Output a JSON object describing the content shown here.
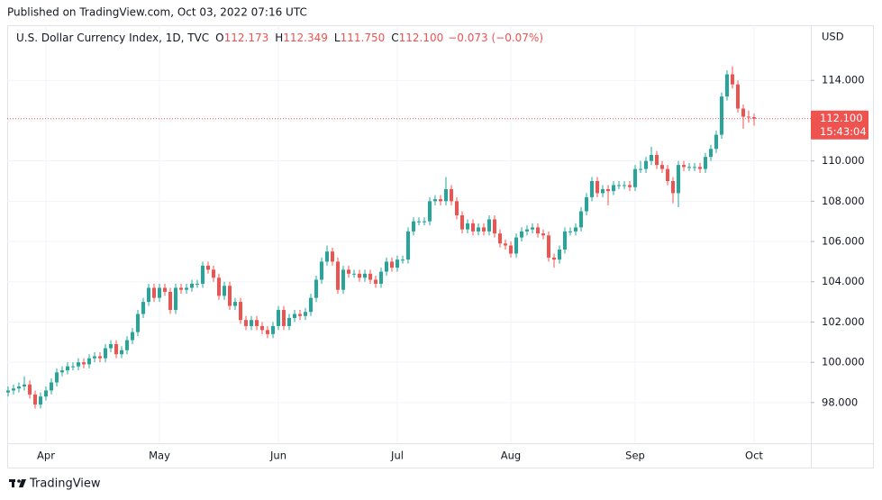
{
  "chart_data": {
    "type": "candlestick",
    "published": "Published on TradingView.com, Oct 03, 2022 07:16 UTC",
    "title": "U.S. Dollar Currency Index, 1D, TVC",
    "legend": [
      {
        "key": "O",
        "value": "112.173"
      },
      {
        "key": "H",
        "value": "112.349"
      },
      {
        "key": "L",
        "value": "111.750"
      },
      {
        "key": "C",
        "value": "112.100"
      }
    ],
    "change": "−0.073 (−0.07%)",
    "currency": "USD",
    "brand": "TradingView",
    "last_price": {
      "value": 112.1,
      "label": "112.100"
    },
    "countdown": "15:43:04",
    "up_color": "#26a69a",
    "down_color": "#ef5350",
    "grid": true,
    "categories": [
      null,
      null,
      null,
      null,
      null,
      null,
      null,
      "Apr",
      null,
      null,
      null,
      null,
      null,
      null,
      null,
      null,
      null,
      null,
      null,
      null,
      null,
      null,
      null,
      null,
      null,
      null,
      null,
      null,
      "May",
      null,
      null,
      null,
      null,
      null,
      null,
      null,
      null,
      null,
      null,
      null,
      null,
      null,
      null,
      null,
      null,
      null,
      null,
      null,
      null,
      null,
      "Jun",
      null,
      null,
      null,
      null,
      null,
      null,
      null,
      null,
      null,
      null,
      null,
      null,
      null,
      null,
      null,
      null,
      null,
      null,
      null,
      null,
      null,
      "Jul",
      null,
      null,
      null,
      null,
      null,
      null,
      null,
      null,
      null,
      null,
      null,
      null,
      null,
      null,
      null,
      null,
      null,
      null,
      null,
      null,
      "Aug",
      null,
      null,
      null,
      null,
      null,
      null,
      null,
      null,
      null,
      null,
      null,
      null,
      null,
      null,
      null,
      null,
      null,
      null,
      null,
      null,
      null,
      null,
      "Sep",
      null,
      null,
      null,
      null,
      null,
      null,
      null,
      null,
      null,
      null,
      null,
      null,
      null,
      null,
      null,
      null,
      null,
      null,
      null,
      null,
      null,
      "Oct"
    ],
    "open": [
      98.5,
      98.6,
      98.7,
      98.8,
      98.9,
      98.4,
      97.9,
      98.3,
      98.6,
      99.0,
      99.5,
      99.6,
      99.8,
      99.8,
      100.0,
      99.9,
      100.2,
      100.3,
      100.2,
      100.7,
      100.9,
      100.4,
      100.6,
      101.1,
      101.5,
      102.4,
      103.0,
      103.7,
      103.2,
      103.7,
      103.5,
      102.6,
      103.7,
      103.6,
      103.7,
      103.9,
      103.9,
      104.8,
      104.6,
      104.2,
      103.3,
      103.8,
      102.8,
      103.0,
      102.1,
      101.8,
      102.1,
      101.8,
      101.6,
      101.4,
      101.8,
      102.6,
      101.8,
      102.2,
      102.4,
      102.3,
      102.5,
      103.2,
      104.1,
      105.0,
      105.5,
      105.0,
      103.6,
      104.6,
      104.4,
      104.4,
      104.2,
      104.4,
      104.1,
      103.9,
      104.5,
      105.0,
      104.7,
      105.1,
      105.1,
      106.5,
      107.0,
      107.0,
      107.0,
      108.0,
      108.1,
      108.0,
      108.6,
      108.0,
      107.3,
      106.6,
      106.9,
      106.5,
      106.7,
      106.5,
      107.1,
      106.4,
      105.9,
      105.8,
      105.4,
      106.2,
      106.5,
      106.6,
      106.7,
      106.4,
      106.3,
      105.2,
      105.1,
      105.6,
      106.5,
      106.5,
      106.7,
      107.5,
      108.2,
      109.0,
      108.4,
      108.6,
      108.5,
      108.8,
      108.8,
      108.8,
      108.7,
      109.6,
      109.6,
      110.0,
      110.3,
      109.8,
      109.6,
      109.0,
      108.4,
      109.8,
      109.7,
      109.7,
      109.7,
      109.6,
      110.2,
      110.6,
      111.3,
      113.2,
      114.3,
      113.8,
      112.6,
      112.2,
      112.173
    ],
    "high": [
      98.8,
      98.9,
      99.0,
      99.3,
      99.1,
      98.6,
      98.5,
      98.8,
      99.2,
      99.7,
      99.8,
      100.0,
      100.0,
      100.2,
      100.2,
      100.4,
      100.5,
      100.5,
      100.9,
      101.1,
      101.1,
      100.8,
      101.3,
      101.7,
      102.6,
      103.2,
      103.9,
      103.9,
      103.9,
      103.9,
      103.7,
      103.9,
      103.9,
      103.9,
      104.1,
      104.1,
      105.0,
      105.0,
      104.8,
      104.4,
      104.0,
      104.0,
      103.2,
      103.2,
      102.3,
      102.3,
      102.3,
      102.0,
      101.8,
      102.0,
      102.8,
      102.8,
      102.4,
      102.6,
      102.6,
      102.7,
      103.4,
      104.3,
      105.2,
      105.8,
      105.7,
      105.2,
      104.8,
      104.8,
      104.6,
      104.6,
      104.6,
      104.6,
      104.3,
      104.7,
      105.2,
      105.2,
      105.3,
      105.3,
      106.7,
      107.2,
      107.2,
      107.2,
      108.2,
      108.3,
      108.3,
      109.2,
      108.8,
      108.2,
      107.5,
      107.1,
      107.1,
      106.9,
      106.9,
      107.3,
      107.3,
      106.6,
      106.1,
      106.0,
      106.4,
      106.7,
      106.8,
      106.9,
      106.9,
      106.6,
      106.5,
      105.4,
      105.8,
      106.7,
      106.7,
      106.9,
      107.7,
      108.4,
      109.2,
      109.2,
      108.8,
      108.8,
      109.0,
      109.0,
      109.0,
      109.0,
      109.8,
      110.0,
      110.2,
      110.7,
      110.5,
      110.0,
      109.8,
      109.2,
      110.0,
      110.0,
      109.9,
      109.9,
      109.9,
      110.4,
      110.8,
      111.5,
      113.4,
      114.5,
      114.7,
      114.0,
      112.8,
      112.5,
      112.349
    ],
    "low": [
      98.3,
      98.4,
      98.5,
      98.6,
      98.2,
      97.7,
      97.7,
      98.1,
      98.4,
      98.8,
      99.3,
      99.4,
      99.6,
      99.6,
      99.7,
      99.7,
      100.0,
      100.0,
      100.0,
      100.5,
      100.2,
      100.2,
      100.4,
      100.9,
      101.3,
      102.2,
      102.8,
      103.0,
      103.0,
      103.3,
      102.4,
      102.4,
      103.4,
      103.4,
      103.5,
      103.7,
      103.7,
      104.4,
      104.0,
      103.1,
      103.1,
      102.6,
      102.6,
      101.9,
      101.6,
      101.6,
      101.6,
      101.4,
      101.2,
      101.2,
      101.6,
      101.6,
      101.6,
      102.0,
      102.1,
      102.1,
      102.3,
      103.0,
      103.9,
      104.8,
      104.8,
      103.4,
      103.4,
      104.2,
      104.2,
      104.0,
      104.0,
      103.9,
      103.7,
      103.7,
      104.3,
      104.5,
      104.5,
      104.9,
      104.9,
      106.3,
      106.8,
      106.8,
      106.8,
      107.8,
      107.8,
      107.8,
      107.8,
      107.1,
      106.4,
      106.4,
      106.3,
      106.3,
      106.3,
      106.3,
      106.2,
      105.7,
      105.6,
      105.2,
      105.2,
      106.0,
      106.3,
      106.4,
      106.2,
      106.1,
      105.0,
      104.7,
      104.9,
      105.4,
      106.3,
      106.3,
      106.5,
      107.3,
      108.0,
      108.2,
      108.2,
      107.8,
      108.3,
      108.6,
      108.6,
      108.5,
      108.5,
      109.4,
      109.4,
      109.8,
      109.6,
      109.4,
      108.8,
      107.9,
      107.7,
      109.5,
      109.5,
      109.5,
      109.4,
      109.4,
      110.0,
      110.4,
      111.1,
      113.0,
      113.6,
      112.4,
      111.6,
      111.9,
      111.75
    ],
    "close": [
      98.6,
      98.7,
      98.8,
      98.9,
      98.4,
      97.9,
      98.3,
      98.6,
      99.0,
      99.5,
      99.6,
      99.8,
      99.8,
      100.0,
      99.9,
      100.2,
      100.3,
      100.2,
      100.7,
      100.9,
      100.4,
      100.6,
      101.1,
      101.5,
      102.4,
      103.0,
      103.7,
      103.2,
      103.7,
      103.5,
      102.6,
      103.7,
      103.6,
      103.7,
      103.9,
      103.9,
      104.8,
      104.6,
      104.2,
      103.3,
      103.8,
      102.8,
      103.0,
      102.1,
      101.8,
      102.1,
      101.8,
      101.6,
      101.4,
      101.8,
      102.6,
      101.8,
      102.2,
      102.4,
      102.3,
      102.5,
      103.2,
      104.1,
      105.0,
      105.5,
      105.0,
      103.6,
      104.6,
      104.4,
      104.4,
      104.2,
      104.4,
      104.1,
      103.9,
      104.5,
      105.0,
      104.7,
      105.1,
      105.1,
      106.5,
      107.0,
      107.0,
      107.0,
      108.0,
      108.1,
      108.0,
      108.6,
      108.0,
      107.3,
      106.6,
      106.9,
      106.5,
      106.7,
      106.5,
      107.1,
      106.4,
      105.9,
      105.8,
      105.4,
      106.2,
      106.5,
      106.6,
      106.7,
      106.4,
      106.3,
      105.2,
      105.1,
      105.6,
      106.5,
      106.5,
      106.7,
      107.5,
      108.2,
      109.0,
      108.4,
      108.6,
      108.5,
      108.8,
      108.8,
      108.8,
      108.7,
      109.6,
      109.6,
      110.0,
      110.3,
      109.8,
      109.6,
      109.0,
      108.4,
      109.8,
      109.7,
      109.7,
      109.7,
      109.6,
      110.2,
      110.6,
      111.3,
      113.2,
      114.3,
      113.8,
      112.6,
      112.2,
      112.17,
      112.1
    ],
    "ylim": [
      95.98,
      116.74
    ],
    "yticks": [
      {
        "value": 98,
        "label": "98.000"
      },
      {
        "value": 100,
        "label": "100.000"
      },
      {
        "value": 102,
        "label": "102.000"
      },
      {
        "value": 104,
        "label": "104.000"
      },
      {
        "value": 106,
        "label": "106.000"
      },
      {
        "value": 108,
        "label": "108.000"
      },
      {
        "value": 110,
        "label": "110.000"
      },
      {
        "value": 112,
        "label": "112.000"
      },
      {
        "value": 114,
        "label": "114.000"
      }
    ]
  }
}
